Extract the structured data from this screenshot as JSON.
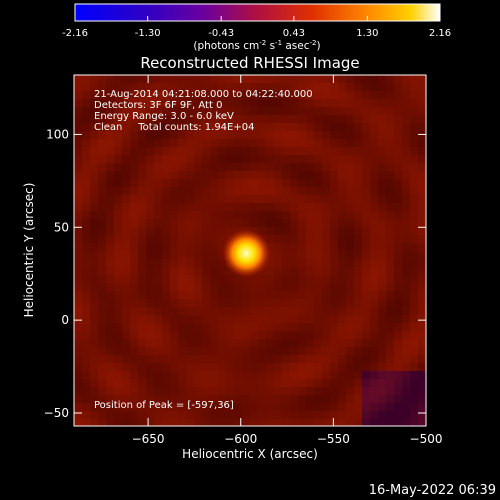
{
  "chart_data": {
    "type": "heatmap",
    "title": "Reconstructed RHESSI Image",
    "xlabel": "Heliocentric X (arcsec)",
    "ylabel": "Heliocentric Y (arcsec)",
    "xlim": [
      -690,
      -500
    ],
    "ylim": [
      -57,
      132
    ],
    "xticks": [
      -650,
      -600,
      -550,
      -500
    ],
    "yticks": [
      -50,
      0,
      50,
      100
    ],
    "colorbar": {
      "label": "(photons cm",
      "label_sup1": "-2",
      "label_mid": " s",
      "label_sup2": "-1",
      "label_mid2": " asec",
      "label_sup3": "-2",
      "label_end": ")",
      "ticks": [
        "-2.16",
        "-1.30",
        "-0.43",
        "0.43",
        "1.30",
        "2.16"
      ],
      "min": -2.16,
      "max": 2.16
    },
    "annotations": [
      "21-Aug-2014 04:21:08.000 to 04:22:40.000",
      "Detectors: 3F 6F 9F, Att 0",
      "Energy Range: 3.0 - 6.0 keV",
      "Clean     Total counts: 1.94E+04"
    ],
    "peak_label": "Position of Peak = [-597,36]",
    "peak": [
      -597,
      36
    ],
    "grid": false
  },
  "footer_timestamp": "16-May-2022 06:39"
}
